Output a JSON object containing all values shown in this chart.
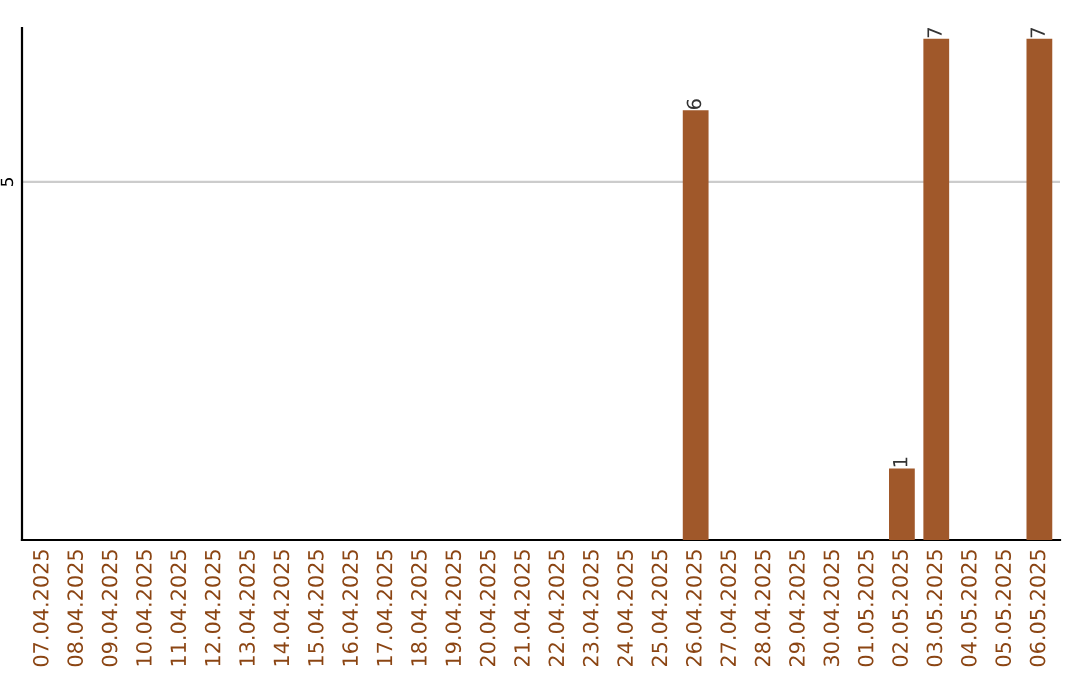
{
  "chart_data": {
    "type": "bar",
    "categories": [
      "07.04.2025",
      "08.04.2025",
      "09.04.2025",
      "10.04.2025",
      "11.04.2025",
      "12.04.2025",
      "13.04.2025",
      "14.04.2025",
      "15.04.2025",
      "16.04.2025",
      "17.04.2025",
      "18.04.2025",
      "19.04.2025",
      "20.04.2025",
      "21.04.2025",
      "22.04.2025",
      "23.04.2025",
      "24.04.2025",
      "25.04.2025",
      "26.04.2025",
      "27.04.2025",
      "28.04.2025",
      "29.04.2025",
      "30.04.2025",
      "01.05.2025",
      "02.05.2025",
      "03.05.2025",
      "04.05.2025",
      "05.05.2025",
      "06.05.2025"
    ],
    "values": [
      null,
      null,
      null,
      null,
      null,
      null,
      null,
      null,
      null,
      null,
      null,
      null,
      null,
      null,
      null,
      null,
      null,
      null,
      null,
      6,
      null,
      null,
      null,
      null,
      null,
      1,
      7,
      null,
      null,
      7
    ],
    "value_labels": [
      null,
      null,
      null,
      null,
      null,
      null,
      null,
      null,
      null,
      null,
      null,
      null,
      null,
      null,
      null,
      null,
      null,
      null,
      null,
      "6",
      null,
      null,
      null,
      null,
      null,
      "1",
      "7",
      null,
      null,
      "7"
    ],
    "color": "#a0582a",
    "ylim": [
      0,
      7.15
    ],
    "yticks": [
      5
    ],
    "grid": "y",
    "legend": false
  }
}
